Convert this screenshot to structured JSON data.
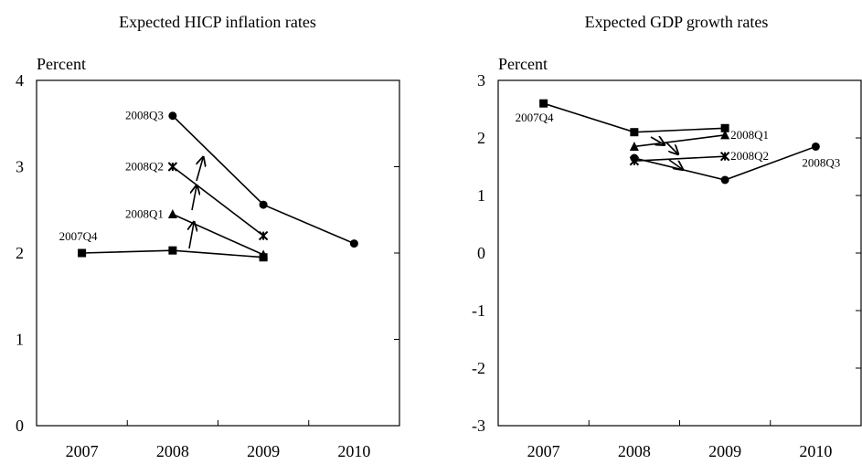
{
  "chart_data": [
    {
      "type": "line",
      "title": "Expected HICP inflation rates",
      "y_label": "Percent",
      "categories": [
        "2007",
        "2008",
        "2009",
        "2010"
      ],
      "ylim": [
        0,
        4
      ],
      "yticks": [
        0,
        1,
        2,
        3,
        4
      ],
      "grid": false,
      "series": [
        {
          "name": "2007Q4",
          "color": "#000000",
          "marker": "square",
          "values": [
            2.0,
            2.03,
            1.95,
            null
          ]
        },
        {
          "name": "2008Q1",
          "color": "#000000",
          "marker": "triangle",
          "values": [
            null,
            2.45,
            1.98,
            null
          ]
        },
        {
          "name": "2008Q2",
          "color": "#000000",
          "marker": "x",
          "values": [
            null,
            3.0,
            2.2,
            null
          ]
        },
        {
          "name": "2008Q3",
          "color": "#000000",
          "marker": "circle",
          "values": [
            null,
            3.59,
            2.56,
            2.11
          ]
        }
      ]
    },
    {
      "type": "line",
      "title": "Expected GDP growth rates",
      "y_label": "Percent",
      "categories": [
        "2007",
        "2008",
        "2009",
        "2010"
      ],
      "ylim": [
        -3,
        3
      ],
      "yticks": [
        -3,
        -2,
        -1,
        0,
        1,
        2,
        3
      ],
      "grid": false,
      "series": [
        {
          "name": "2007Q4",
          "color": "#000000",
          "marker": "square",
          "values": [
            2.6,
            2.1,
            2.17,
            null
          ]
        },
        {
          "name": "2008Q1",
          "color": "#000000",
          "marker": "triangle",
          "values": [
            null,
            1.85,
            2.05,
            null
          ]
        },
        {
          "name": "2008Q2",
          "color": "#000000",
          "marker": "x",
          "values": [
            null,
            1.6,
            1.68,
            null
          ]
        },
        {
          "name": "2008Q3",
          "color": "#000000",
          "marker": "circle",
          "values": [
            null,
            1.65,
            1.27,
            1.85
          ]
        }
      ]
    }
  ]
}
